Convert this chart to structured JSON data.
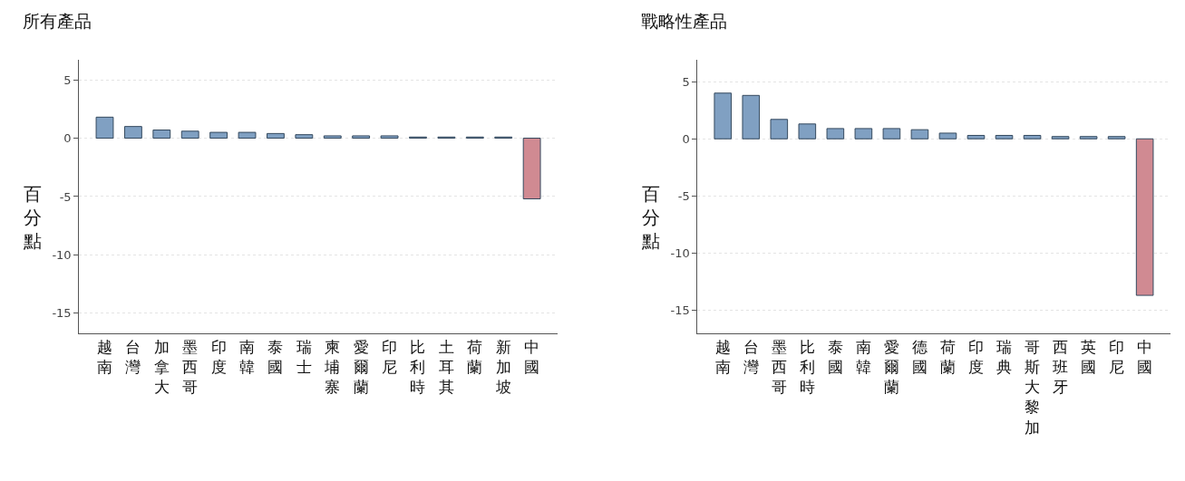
{
  "chart_data": [
    {
      "type": "bar",
      "title": "所有產品",
      "ylabel": "百分點",
      "categories": [
        "越南",
        "台灣",
        "加拿大",
        "墨西哥",
        "印度",
        "南韓",
        "泰國",
        "瑞士",
        "柬埔寨",
        "愛爾蘭",
        "印尼",
        "比利時",
        "土耳其",
        "荷蘭",
        "新加坡",
        "中國"
      ],
      "values": [
        1.8,
        1.0,
        0.7,
        0.6,
        0.5,
        0.5,
        0.4,
        0.3,
        0.2,
        0.2,
        0.2,
        0.1,
        0.1,
        0.1,
        0.1,
        -5.2
      ],
      "colors": [
        "#80a0c2",
        "#80a0c2",
        "#80a0c2",
        "#80a0c2",
        "#80a0c2",
        "#80a0c2",
        "#80a0c2",
        "#80a0c2",
        "#80a0c2",
        "#80a0c2",
        "#80a0c2",
        "#80a0c2",
        "#80a0c2",
        "#80a0c2",
        "#80a0c2",
        "#d08a92"
      ],
      "ylim": [
        -16.7,
        6.7
      ],
      "yticks": [
        5,
        0,
        -5,
        -10,
        -15
      ],
      "grid": "y"
    },
    {
      "type": "bar",
      "title": "戰略性產品",
      "ylabel": "百分點",
      "categories": [
        "越南",
        "台灣",
        "墨西哥",
        "比利時",
        "泰國",
        "南韓",
        "愛爾蘭",
        "德國",
        "荷蘭",
        "印度",
        "瑞典",
        "哥斯大黎加",
        "西班牙",
        "英國",
        "印尼",
        "中國"
      ],
      "values": [
        4.0,
        3.8,
        1.7,
        1.3,
        0.9,
        0.9,
        0.9,
        0.8,
        0.5,
        0.3,
        0.3,
        0.3,
        0.2,
        0.2,
        0.2,
        -13.7
      ],
      "colors": [
        "#80a0c2",
        "#80a0c2",
        "#80a0c2",
        "#80a0c2",
        "#80a0c2",
        "#80a0c2",
        "#80a0c2",
        "#80a0c2",
        "#80a0c2",
        "#80a0c2",
        "#80a0c2",
        "#80a0c2",
        "#80a0c2",
        "#80a0c2",
        "#80a0c2",
        "#d08a92"
      ],
      "ylim": [
        -17.0,
        6.9
      ],
      "yticks": [
        5,
        0,
        -5,
        -10,
        -15
      ],
      "grid": "y"
    }
  ]
}
